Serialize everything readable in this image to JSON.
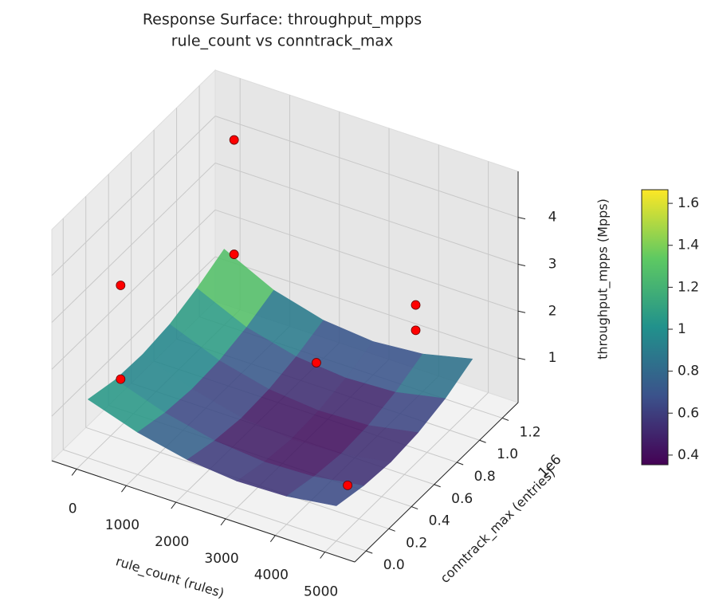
{
  "chart_data": {
    "type": "surface3d",
    "title": "Response Surface: throughput_mpps",
    "subtitle": "rule_count vs conntrack_max",
    "x_label": "rule_count (rules)",
    "y_label": "conntrack_max (entries)",
    "z_label": "throughput_mpps (Mpps)",
    "y_offset_label": "1e6",
    "xlim": [
      -500,
      5600
    ],
    "ylim": [
      -100000,
      1340000
    ],
    "zlim": [
      0.05,
      4.98
    ],
    "xticks": [
      0,
      1000,
      2000,
      3000,
      4000,
      5000
    ],
    "yticks": [
      {
        "value": 0,
        "label": "0.0"
      },
      {
        "value": 200000,
        "label": "0.2"
      },
      {
        "value": 400000,
        "label": "0.4"
      },
      {
        "value": 600000,
        "label": "0.6"
      },
      {
        "value": 800000,
        "label": "0.8"
      },
      {
        "value": 1000000,
        "label": "1.0"
      },
      {
        "value": 1200000,
        "label": "1.2"
      }
    ],
    "zticks": [
      1,
      2,
      3,
      4
    ],
    "surface": {
      "x": [
        0,
        1000,
        2000,
        3000,
        4000,
        5000
      ],
      "y": [
        0,
        240000,
        480000,
        720000,
        960000,
        1200000
      ],
      "z": [
        [
          1.3,
          0.95,
          0.72,
          0.62,
          0.65,
          0.8
        ],
        [
          1.15,
          0.8,
          0.56,
          0.46,
          0.5,
          0.66
        ],
        [
          1.12,
          0.74,
          0.48,
          0.38,
          0.42,
          0.6
        ],
        [
          1.2,
          0.78,
          0.52,
          0.42,
          0.46,
          0.66
        ],
        [
          1.4,
          0.92,
          0.65,
          0.55,
          0.6,
          0.82
        ],
        [
          1.67,
          1.15,
          0.86,
          0.76,
          0.85,
          1.1
        ]
      ],
      "colormap": "viridis"
    },
    "points": {
      "color": "#ff0000",
      "x": [
        200,
        200,
        200,
        200,
        3000,
        5000,
        5000,
        5000
      ],
      "y": [
        200000,
        200000,
        1200000,
        1200000,
        700000,
        700000,
        700000,
        100000
      ],
      "z": [
        1.33,
        3.33,
        1.63,
        4.07,
        1.49,
        2.89,
        3.43,
        1.0
      ]
    },
    "colorbar": {
      "clim": [
        0.354,
        1.665
      ],
      "ticks": [
        0.4,
        0.6,
        0.8,
        1.0,
        1.2,
        1.4,
        1.6
      ]
    },
    "grid": true
  }
}
